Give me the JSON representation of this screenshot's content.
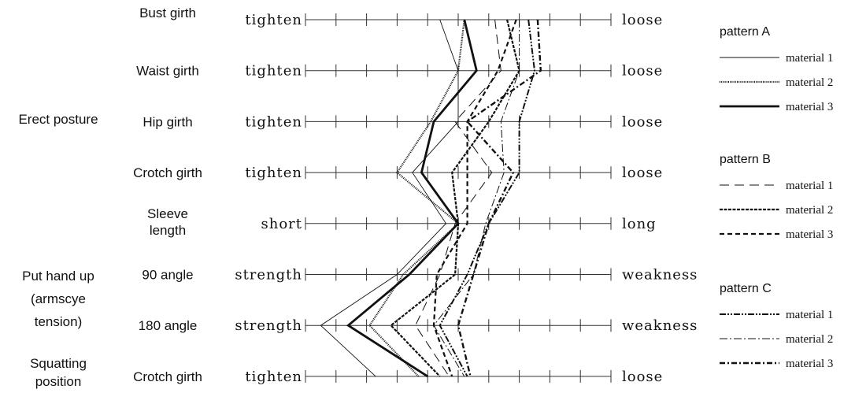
{
  "chart_data": {
    "type": "line",
    "title": "",
    "xlabel": "",
    "ylabel": "",
    "x_scale": {
      "min": 0,
      "max": 10,
      "ticks": [
        0,
        1,
        2,
        3,
        4,
        5,
        6,
        7,
        8,
        9,
        10
      ]
    },
    "groups": [
      {
        "label": "Erect posture",
        "rows": [
          0,
          3
        ]
      },
      {
        "label": "Put hand up (armscye tension)",
        "rows": [
          5,
          6
        ]
      },
      {
        "label": "Squatting position",
        "rows": [
          7,
          7
        ]
      }
    ],
    "items": [
      {
        "label": "Bust girth",
        "left": "tighten",
        "right": "loose"
      },
      {
        "label": "Waist girth",
        "left": "tighten",
        "right": "loose"
      },
      {
        "label": "Hip girth",
        "left": "tighten",
        "right": "loose"
      },
      {
        "label": "Crotch girth",
        "left": "tighten",
        "right": "loose"
      },
      {
        "label": "Sleeve length",
        "left": "short",
        "right": "long"
      },
      {
        "label": "90 angle",
        "left": "strength",
        "right": "weakness"
      },
      {
        "label": "180 angle",
        "left": "strength",
        "right": "weakness"
      },
      {
        "label": "Crotch girth",
        "left": "tighten",
        "right": "loose"
      }
    ],
    "legend": [
      {
        "pattern": "pattern A",
        "entries": [
          "material 1",
          "material 2",
          "material 3"
        ]
      },
      {
        "pattern": "pattern B",
        "entries": [
          "material 1",
          "material 2",
          "material 3"
        ]
      },
      {
        "pattern": "pattern C",
        "entries": [
          "material 1",
          "material 2",
          "material 3"
        ]
      }
    ],
    "legend_placement": "right",
    "series": [
      {
        "pattern": "pattern A",
        "name": "material 1",
        "style": "solid-thin",
        "values": [
          4.4,
          5.0,
          5.0,
          3.5,
          4.6,
          3.0,
          0.5,
          2.3
        ]
      },
      {
        "pattern": "pattern A",
        "name": "material 2",
        "style": "dotted",
        "values": [
          5.2,
          5.0,
          4.1,
          3.0,
          5.0,
          3.2,
          2.1,
          3.7
        ]
      },
      {
        "pattern": "pattern A",
        "name": "material 3",
        "style": "solid-thick",
        "values": [
          5.2,
          5.6,
          4.2,
          3.8,
          5.0,
          3.4,
          1.4,
          4.0
        ]
      },
      {
        "pattern": "pattern B",
        "name": "material 1",
        "style": "long-dash",
        "values": [
          6.2,
          6.4,
          4.9,
          6.1,
          4.9,
          4.4,
          3.6,
          4.7
        ]
      },
      {
        "pattern": "pattern B",
        "name": "material 2",
        "style": "dense-dash",
        "values": [
          6.6,
          7.0,
          6.0,
          4.8,
          5.0,
          4.9,
          2.8,
          4.4
        ]
      },
      {
        "pattern": "pattern B",
        "name": "material 3",
        "style": "medium-dash",
        "values": [
          6.9,
          6.3,
          5.3,
          5.3,
          5.3,
          4.3,
          4.2,
          4.8
        ]
      },
      {
        "pattern": "pattern C",
        "name": "material 1",
        "style": "dash-dot-dot",
        "values": [
          7.3,
          7.5,
          7.0,
          7.0,
          6.0,
          5.3,
          4.4,
          5.3
        ]
      },
      {
        "pattern": "pattern C",
        "name": "material 2",
        "style": "dash-dot",
        "values": [
          7.0,
          7.0,
          6.4,
          6.5,
          5.9,
          5.5,
          4.2,
          5.2
        ]
      },
      {
        "pattern": "pattern C",
        "name": "material 3",
        "style": "dash-dot-thick",
        "values": [
          7.6,
          7.7,
          5.3,
          6.8,
          6.0,
          5.5,
          5.0,
          5.4
        ]
      }
    ]
  }
}
